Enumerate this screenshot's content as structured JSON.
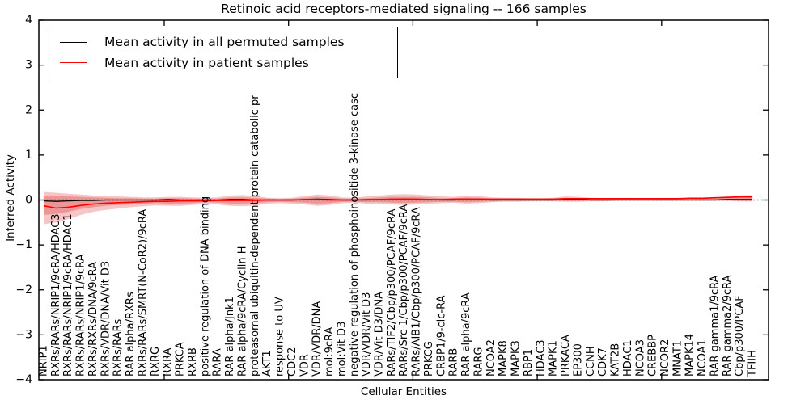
{
  "title": "Retinoic acid receptors-mediated signaling -- 166 samples",
  "xlabel": "Cellular Entities",
  "ylabel": "Inferred Activity",
  "legend": {
    "items": [
      {
        "label": "Mean activity in all permuted samples",
        "color": "#000000"
      },
      {
        "label": "Mean activity in patient samples",
        "color": "#ff0000"
      }
    ]
  },
  "chart_data": {
    "type": "line",
    "title": "Retinoic acid receptors-mediated signaling -- 166 samples",
    "xlabel": "Cellular Entities",
    "ylabel": "Inferred Activity",
    "ylim": [
      -4,
      4
    ],
    "yticks": [
      4,
      3,
      2,
      1,
      0,
      -1,
      -2,
      -3,
      -4
    ],
    "ytick_labels": [
      "4",
      "3",
      "2",
      "1",
      "0",
      "−1",
      "−2",
      "−3",
      "−4"
    ],
    "xticks": [
      10,
      20,
      30,
      40,
      50
    ],
    "grid": false,
    "legend_position": "upper left",
    "zero_line": {
      "y": 0,
      "style": "dotted",
      "color": "#000000"
    },
    "band_color": "#e04040",
    "categories": [
      "NRIP1",
      "RXRs/RARs/NRIP1/9cRA/HDAC3",
      "RXRs/RARs/NRIP1/9cRA/HDAC1",
      "RXRs/RARs/NRIP1/9cRA",
      "RXRs/RXRs/DNA/9cRA",
      "RXRs/VDR/DNA/Vit D3",
      "RXRs/RARs",
      "RAR alpha/RXRs",
      "RXRs/RARs/SMRT(N-CoR2)/9cRA",
      "RXRG",
      "RXRA",
      "PRKCA",
      "RXRB",
      "positive regulation of DNA binding",
      "RARA",
      "RAR alpha/Jnk1",
      "RAR alpha/9cRA/Cyclin H",
      "proteasomal ubiquitin-dependent protein catabolic pr",
      "AKT1",
      "response to UV",
      "CDC2",
      "VDR",
      "VDR/VDR/DNA",
      "mol:9cRA",
      "mol:Vit D3",
      "negative regulation of phosphoinositide 3-kinase casc",
      "VDR/VDR/Vit D3",
      "VDR/Vit D3/DNA",
      "RARs/TIF2/Cbp/p300/PCAF/9cRA",
      "RARs/Src-1/Cbp/p300/PCAF/9cRA",
      "RARs/AIB1/Cbp/p300/PCAF/9cRA",
      "PRKCG",
      "CRBP1/9-cic-RA",
      "RARB",
      "RAR alpha/9cRA",
      "RARG",
      "NCOA2",
      "MAPK8",
      "MAPK3",
      "RBP1",
      "HDAC3",
      "MAPK1",
      "PRKACA",
      "EP300",
      "CCNH",
      "CDK7",
      "KAT2B",
      "HDAC1",
      "NCOA3",
      "CREBBP",
      "NCOR2",
      "MNAT1",
      "MAPK14",
      "NCOA1",
      "RAR gamma1/9cRA",
      "RAR gamma2/9cRA",
      "Cbp/p300/PCAF",
      "TFIIH"
    ],
    "series": [
      {
        "name": "Mean activity in all permuted samples",
        "color": "#000000",
        "values": [
          -0.02,
          -0.03,
          -0.02,
          -0.01,
          -0.01,
          0,
          0,
          0,
          0,
          0,
          0.01,
          0,
          0,
          0,
          0,
          0.01,
          0.01,
          0,
          0,
          0,
          0,
          0.01,
          0.02,
          0.01,
          0,
          0,
          0,
          0.01,
          0.01,
          0.02,
          0.01,
          0.01,
          0,
          0,
          0.01,
          0.01,
          0,
          0,
          0,
          0,
          0,
          0,
          0.01,
          0.01,
          0,
          0,
          0,
          0,
          0,
          0,
          0,
          0,
          0,
          0,
          0,
          0.01,
          0.01,
          0.01
        ]
      },
      {
        "name": "Mean activity in patient samples",
        "color": "#ff0000",
        "values": [
          -0.13,
          -0.18,
          -0.16,
          -0.12,
          -0.09,
          -0.07,
          -0.06,
          -0.05,
          -0.04,
          -0.03,
          -0.03,
          -0.02,
          -0.02,
          -0.02,
          -0.01,
          -0.01,
          -0.01,
          -0.01,
          0,
          0,
          0,
          0.01,
          0.01,
          0,
          0,
          0,
          0.01,
          0.01,
          0.02,
          0.02,
          0.02,
          0.01,
          0.01,
          0.02,
          0.02,
          0.02,
          0.02,
          0.02,
          0.02,
          0.02,
          0.02,
          0.02,
          0.03,
          0.03,
          0.03,
          0.03,
          0.03,
          0.03,
          0.03,
          0.03,
          0.03,
          0.03,
          0.04,
          0.04,
          0.05,
          0.06,
          0.07,
          0.07
        ]
      }
    ],
    "bands": [
      {
        "name": "patient-std-outer",
        "opacity": 0.3,
        "hi": [
          0.18,
          0.16,
          0.14,
          0.12,
          0.1,
          0.09,
          0.08,
          0.07,
          0.06,
          0.06,
          0.07,
          0.07,
          0.06,
          0.05,
          0.06,
          0.1,
          0.11,
          0.09,
          0.05,
          0.04,
          0.05,
          0.09,
          0.12,
          0.1,
          0.06,
          0.05,
          0.08,
          0.1,
          0.12,
          0.13,
          0.12,
          0.1,
          0.08,
          0.07,
          0.1,
          0.09,
          0.06,
          0.05,
          0.05,
          0.04,
          0.04,
          0.05,
          0.08,
          0.07,
          0.05,
          0.04,
          0.04,
          0.04,
          0.04,
          0.04,
          0.04,
          0.04,
          0.04,
          0.05,
          0.06,
          0.08,
          0.1,
          0.11
        ],
        "lo": [
          -0.54,
          -0.5,
          -0.42,
          -0.33,
          -0.26,
          -0.22,
          -0.19,
          -0.16,
          -0.14,
          -0.12,
          -0.13,
          -0.13,
          -0.11,
          -0.09,
          -0.1,
          -0.13,
          -0.14,
          -0.12,
          -0.08,
          -0.07,
          -0.08,
          -0.1,
          -0.13,
          -0.11,
          -0.07,
          -0.06,
          -0.08,
          -0.09,
          -0.1,
          -0.11,
          -0.1,
          -0.08,
          -0.07,
          -0.06,
          -0.08,
          -0.07,
          -0.05,
          -0.04,
          -0.04,
          -0.03,
          -0.03,
          -0.03,
          -0.04,
          -0.04,
          -0.03,
          -0.03,
          -0.02,
          -0.02,
          -0.02,
          -0.02,
          -0.02,
          -0.02,
          -0.02,
          -0.02,
          -0.02,
          -0.02,
          -0.03,
          -0.03
        ]
      },
      {
        "name": "patient-std-inner",
        "opacity": 0.35,
        "hi": [
          0.1,
          0.09,
          0.08,
          0.07,
          0.06,
          0.05,
          0.04,
          0.04,
          0.03,
          0.03,
          0.04,
          0.04,
          0.03,
          0.03,
          0.03,
          0.06,
          0.06,
          0.05,
          0.03,
          0.02,
          0.03,
          0.05,
          0.07,
          0.06,
          0.03,
          0.03,
          0.04,
          0.06,
          0.07,
          0.07,
          0.07,
          0.06,
          0.04,
          0.04,
          0.06,
          0.05,
          0.03,
          0.03,
          0.03,
          0.02,
          0.02,
          0.03,
          0.04,
          0.04,
          0.03,
          0.02,
          0.02,
          0.02,
          0.02,
          0.02,
          0.02,
          0.02,
          0.02,
          0.03,
          0.03,
          0.04,
          0.06,
          0.06
        ],
        "lo": [
          -0.33,
          -0.31,
          -0.26,
          -0.2,
          -0.16,
          -0.13,
          -0.11,
          -0.1,
          -0.08,
          -0.07,
          -0.08,
          -0.08,
          -0.07,
          -0.05,
          -0.06,
          -0.08,
          -0.08,
          -0.07,
          -0.05,
          -0.04,
          -0.05,
          -0.06,
          -0.08,
          -0.07,
          -0.04,
          -0.04,
          -0.05,
          -0.05,
          -0.06,
          -0.07,
          -0.06,
          -0.05,
          -0.04,
          -0.04,
          -0.05,
          -0.04,
          -0.03,
          -0.02,
          -0.02,
          -0.02,
          -0.02,
          -0.02,
          -0.02,
          -0.02,
          -0.02,
          -0.02,
          -0.01,
          -0.01,
          -0.01,
          -0.01,
          -0.01,
          -0.01,
          -0.01,
          -0.01,
          -0.01,
          -0.01,
          -0.02,
          -0.02
        ]
      }
    ]
  }
}
